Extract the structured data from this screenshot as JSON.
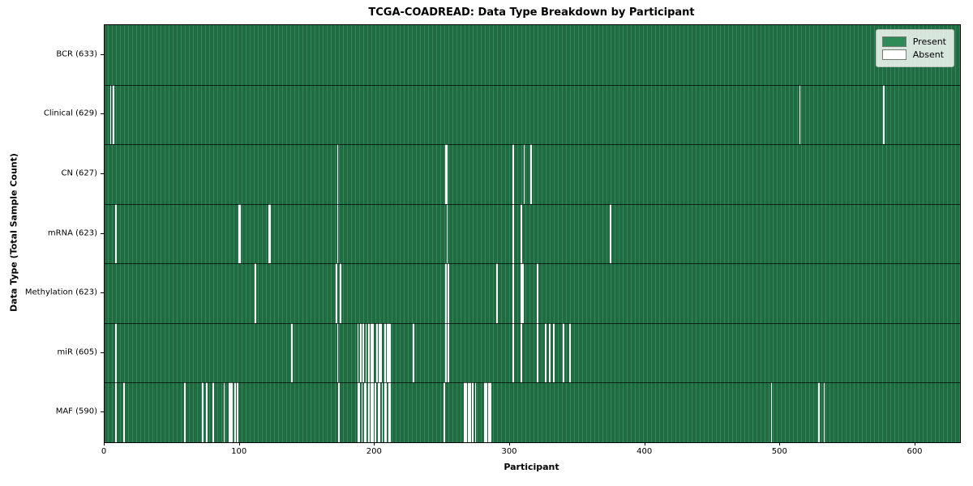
{
  "figure": {
    "title": "TCGA-COADREAD: Data Type Breakdown by Participant",
    "x_axis": {
      "label": "Participant",
      "ticks": [
        "0",
        "100",
        "200",
        "300",
        "400",
        "500",
        "600"
      ],
      "tick_values": [
        0,
        100,
        200,
        300,
        400,
        500,
        600
      ]
    },
    "y_axis": {
      "label": "Data Type (Total Sample Count)"
    },
    "legend": {
      "items": [
        {
          "label": "Present",
          "color": "#2e8b57"
        },
        {
          "label": "Absent",
          "color": "#ffffff"
        }
      ]
    },
    "colors": {
      "present_fill": "#2e8b57",
      "present_edge": "#17492e",
      "absent": "#fcfcfc",
      "plot_border": "#000000",
      "legend_bg": "#e3e8e3"
    }
  },
  "chart_data": {
    "type": "heatmap",
    "title": "TCGA-COADREAD: Data Type Breakdown by Participant",
    "xlabel": "Participant",
    "ylabel": "Data Type (Total Sample Count)",
    "x_range": [
      0,
      633
    ],
    "legend": [
      "Present",
      "Absent"
    ],
    "legend_position": "upper right",
    "value_encoding": {
      "present": "#2e8b57",
      "absent": "#ffffff"
    },
    "rows": [
      {
        "name": "bcr",
        "label": "BCR (633)",
        "total_samples": 633,
        "absent_participants": []
      },
      {
        "name": "clinical",
        "label": "Clinical (629)",
        "total_samples": 629,
        "absent_participants": [
          4,
          6,
          514,
          576
        ]
      },
      {
        "name": "cn",
        "label": "CN (627)",
        "total_samples": 627,
        "absent_participants": [
          172,
          252,
          253,
          302,
          310,
          315
        ]
      },
      {
        "name": "mrna",
        "label": "mRNA (623)",
        "total_samples": 623,
        "absent_participants": [
          8,
          99,
          100,
          121,
          122,
          172,
          253,
          302,
          308,
          374
        ]
      },
      {
        "name": "methylation",
        "label": "Methylation (623)",
        "total_samples": 623,
        "absent_participants": [
          111,
          171,
          174,
          252,
          254,
          290,
          302,
          308,
          309,
          320
        ]
      },
      {
        "name": "mir",
        "label": "miR (605)",
        "total_samples": 605,
        "absent_participants": [
          8,
          138,
          172,
          187,
          189,
          191,
          193,
          195,
          197,
          198,
          201,
          203,
          204,
          207,
          209,
          210,
          211,
          228,
          252,
          254,
          302,
          308,
          320,
          326,
          329,
          332,
          339,
          344
        ]
      },
      {
        "name": "maf",
        "label": "MAF (590)",
        "total_samples": 590,
        "absent_participants": [
          8,
          14,
          59,
          72,
          75,
          80,
          88,
          92,
          93,
          94,
          96,
          98,
          173,
          187,
          188,
          190,
          192,
          193,
          195,
          197,
          198,
          200,
          202,
          203,
          205,
          207,
          208,
          210,
          211,
          251,
          266,
          267,
          269,
          270,
          272,
          274,
          281,
          282,
          284,
          285,
          493,
          528,
          532
        ]
      }
    ]
  }
}
